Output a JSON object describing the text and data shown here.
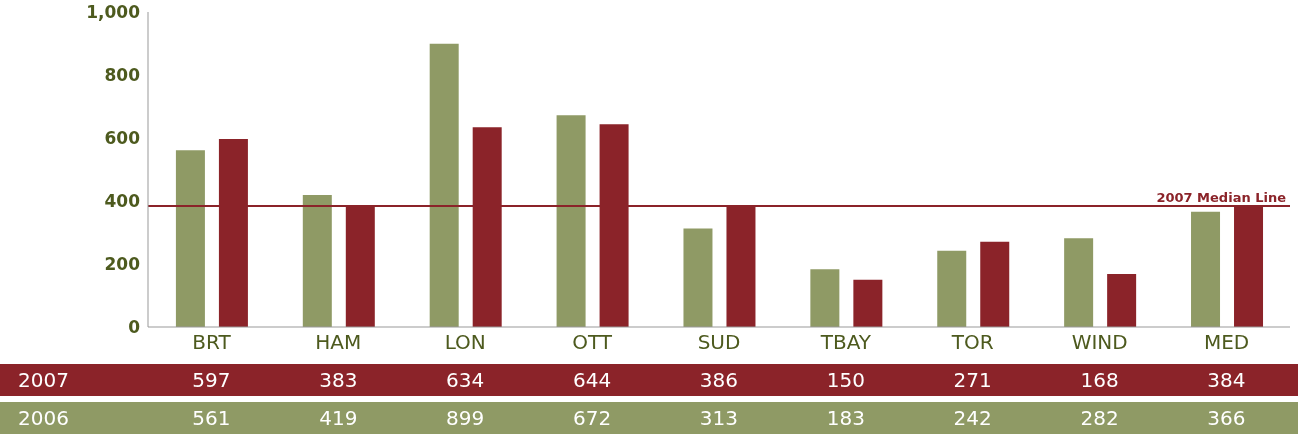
{
  "chart_data": {
    "type": "bar",
    "categories": [
      "BRT",
      "HAM",
      "LON",
      "OTT",
      "SUD",
      "TBAY",
      "TOR",
      "WIND",
      "MED"
    ],
    "series": [
      {
        "name": "2006",
        "color": "#8f9a65",
        "values": [
          561,
          419,
          899,
          672,
          313,
          183,
          242,
          282,
          366
        ]
      },
      {
        "name": "2007",
        "color": "#8b2329",
        "values": [
          597,
          383,
          634,
          644,
          386,
          150,
          271,
          168,
          384
        ]
      }
    ],
    "ylim": [
      0,
      1000
    ],
    "yticks": [
      0,
      200,
      400,
      600,
      800,
      {
        "value": 1000,
        "label": "1,000"
      }
    ],
    "grid": false,
    "data_labels": true,
    "ref_lines": [
      {
        "axis": "y",
        "value": 384,
        "label": "2007 Median Line",
        "color": "#8b2329"
      }
    ]
  }
}
